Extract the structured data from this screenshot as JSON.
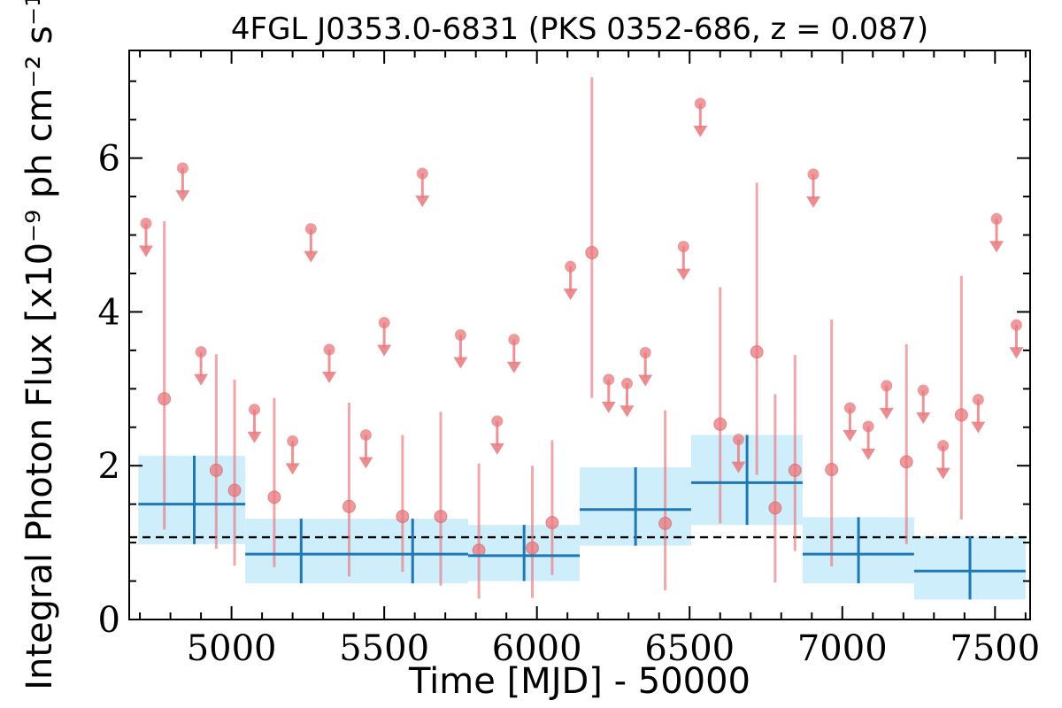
{
  "chart_data": {
    "type": "scatter",
    "title": "4FGL J0353.0-6831 (PKS 0352-686, z = 0.087)",
    "xlabel": "Time [MJD] - 50000",
    "ylabel": "Integral Photon Flux [x10⁻⁹ ph cm⁻² s⁻¹]",
    "xlim": [
      4665,
      7615
    ],
    "ylim": [
      0,
      7.4
    ],
    "xticks": [
      5000,
      5500,
      6000,
      6500,
      7000,
      7500
    ],
    "yticks": [
      0,
      2,
      4,
      6
    ],
    "grid": false,
    "reference_level": 1.07,
    "colors": {
      "points": "#e8787c",
      "bins_line": "#1f77b4",
      "bins_band": "#cfeefb",
      "reference_line": "#000000"
    },
    "detections": [
      {
        "x": 4780,
        "y": 2.87,
        "lo": 1.17,
        "hi": 5.18
      },
      {
        "x": 4950,
        "y": 1.94,
        "lo": 0.92,
        "hi": 3.45
      },
      {
        "x": 5010,
        "y": 1.68,
        "lo": 0.7,
        "hi": 3.12
      },
      {
        "x": 5140,
        "y": 1.59,
        "lo": 0.68,
        "hi": 2.88
      },
      {
        "x": 5385,
        "y": 1.47,
        "lo": 0.56,
        "hi": 2.82
      },
      {
        "x": 5560,
        "y": 1.34,
        "lo": 0.62,
        "hi": 2.4
      },
      {
        "x": 5685,
        "y": 1.34,
        "lo": 0.44,
        "hi": 2.7
      },
      {
        "x": 5810,
        "y": 0.9,
        "lo": 0.27,
        "hi": 2.03
      },
      {
        "x": 5985,
        "y": 0.93,
        "lo": 0.28,
        "hi": 2.0
      },
      {
        "x": 6050,
        "y": 1.26,
        "lo": 0.58,
        "hi": 2.33
      },
      {
        "x": 6180,
        "y": 4.77,
        "lo": 2.88,
        "hi": 7.05
      },
      {
        "x": 6420,
        "y": 1.25,
        "lo": 0.38,
        "hi": 2.72
      },
      {
        "x": 6600,
        "y": 2.54,
        "lo": 1.25,
        "hi": 4.32
      },
      {
        "x": 6720,
        "y": 3.48,
        "lo": 1.88,
        "hi": 5.68
      },
      {
        "x": 6780,
        "y": 1.45,
        "lo": 0.48,
        "hi": 2.93
      },
      {
        "x": 6845,
        "y": 1.94,
        "lo": 0.89,
        "hi": 3.44
      },
      {
        "x": 6965,
        "y": 1.95,
        "lo": 0.69,
        "hi": 3.9
      },
      {
        "x": 7210,
        "y": 2.05,
        "lo": 0.98,
        "hi": 3.58
      },
      {
        "x": 7390,
        "y": 2.66,
        "lo": 1.3,
        "hi": 4.47
      }
    ],
    "upper_limits": [
      {
        "x": 4720,
        "y": 5.15
      },
      {
        "x": 4840,
        "y": 5.87
      },
      {
        "x": 4900,
        "y": 3.48
      },
      {
        "x": 5075,
        "y": 2.73
      },
      {
        "x": 5200,
        "y": 2.32
      },
      {
        "x": 5260,
        "y": 5.08
      },
      {
        "x": 5320,
        "y": 3.51
      },
      {
        "x": 5440,
        "y": 2.4
      },
      {
        "x": 5500,
        "y": 3.86
      },
      {
        "x": 5625,
        "y": 5.8
      },
      {
        "x": 5750,
        "y": 3.7
      },
      {
        "x": 5870,
        "y": 2.58
      },
      {
        "x": 5925,
        "y": 3.64
      },
      {
        "x": 6110,
        "y": 4.59
      },
      {
        "x": 6235,
        "y": 3.12
      },
      {
        "x": 6295,
        "y": 3.07
      },
      {
        "x": 6355,
        "y": 3.47
      },
      {
        "x": 6480,
        "y": 4.85
      },
      {
        "x": 6535,
        "y": 6.71
      },
      {
        "x": 6660,
        "y": 2.34
      },
      {
        "x": 6905,
        "y": 5.79
      },
      {
        "x": 7025,
        "y": 2.75
      },
      {
        "x": 7085,
        "y": 2.51
      },
      {
        "x": 7145,
        "y": 3.04
      },
      {
        "x": 7265,
        "y": 2.98
      },
      {
        "x": 7330,
        "y": 2.26
      },
      {
        "x": 7445,
        "y": 2.86
      },
      {
        "x": 7505,
        "y": 5.21
      },
      {
        "x": 7570,
        "y": 3.83
      }
    ],
    "bins": [
      {
        "x0": 4695,
        "x1": 5045,
        "x": 4878,
        "y": 1.5,
        "lo": 0.98,
        "hi": 2.13
      },
      {
        "x0": 5045,
        "x1": 5410,
        "x": 5228,
        "y": 0.85,
        "lo": 0.47,
        "hi": 1.31
      },
      {
        "x0": 5410,
        "x1": 5775,
        "x": 5593,
        "y": 0.85,
        "lo": 0.47,
        "hi": 1.31
      },
      {
        "x0": 5775,
        "x1": 6140,
        "x": 5958,
        "y": 0.83,
        "lo": 0.5,
        "hi": 1.23
      },
      {
        "x0": 6140,
        "x1": 6505,
        "x": 6323,
        "y": 1.43,
        "lo": 0.96,
        "hi": 1.98
      },
      {
        "x0": 6505,
        "x1": 6870,
        "x": 6688,
        "y": 1.78,
        "lo": 1.23,
        "hi": 2.4
      },
      {
        "x0": 6870,
        "x1": 7235,
        "x": 7053,
        "y": 0.85,
        "lo": 0.47,
        "hi": 1.33
      },
      {
        "x0": 7235,
        "x1": 7600,
        "x": 7418,
        "y": 0.63,
        "lo": 0.26,
        "hi": 1.08
      }
    ]
  }
}
